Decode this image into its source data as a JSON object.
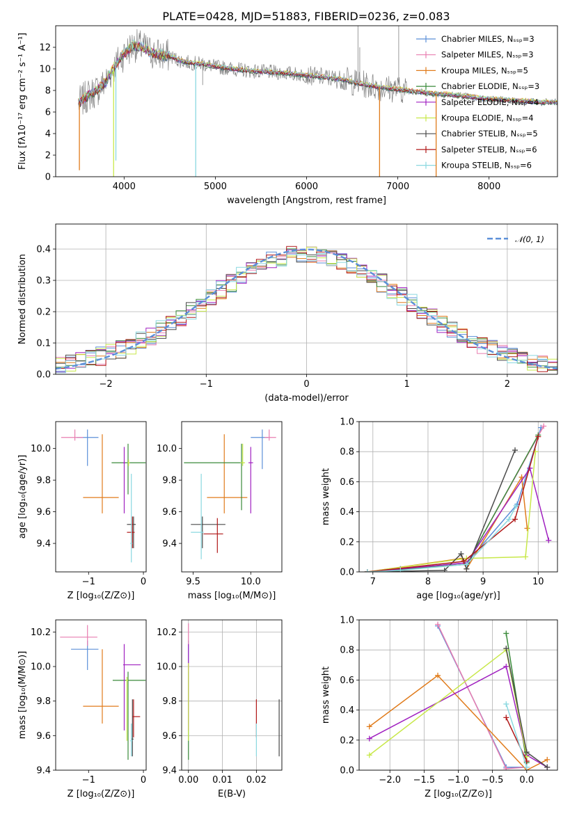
{
  "title": "PLATE=0428, MJD=51883, FIBERID=0236, z=0.083",
  "series_colors": {
    "Chabrier MILES": "#5b8fd8",
    "Salpeter MILES": "#e87db0",
    "Kroupa MILES": "#e07b1b",
    "Chabrier ELODIE": "#3a8a3a",
    "Salpeter ELODIE": "#a020c0",
    "Kroupa ELODIE": "#c8e84a",
    "Chabrier STELIB": "#4a4a4a",
    "Salpeter STELIB": "#b01818",
    "Kroupa STELIB": "#8ad8e0",
    "observed": "#808080",
    "normal": "#5b8fd8"
  },
  "chart_data": [
    {
      "id": "spectrum",
      "type": "line",
      "xlabel": "wavelength [Angstrom, rest frame]",
      "ylabel": "Flux [fλ10⁻¹⁷ erg cm⁻² s⁻¹ A⁻¹]",
      "xlim": [
        3250,
        8750
      ],
      "ylim": [
        0,
        14
      ],
      "xticks": [
        4000,
        5000,
        6000,
        7000,
        8000
      ],
      "yticks": [
        0,
        2,
        4,
        6,
        8,
        10,
        12
      ],
      "grid": false,
      "legend": "top-right",
      "legend_entries": [
        "Chabrier MILES, Nₛₛₚ=3",
        "Salpeter MILES, Nₛₛₚ=3",
        "Kroupa MILES, Nₛₛₚ=5",
        "Chabrier ELODIE, Nₛₛₚ=3",
        "Salpeter ELODIE, Nₛₛₚ=4",
        "Kroupa ELODIE, Nₛₛₚ=4",
        "Chabrier STELIB, Nₛₛₚ=5",
        "Salpeter STELIB, Nₛₛₚ=6",
        "Kroupa STELIB, Nₛₛₚ=6"
      ],
      "continuum": {
        "x": [
          3500,
          3600,
          3700,
          3800,
          3900,
          4000,
          4100,
          4200,
          4300,
          4400,
          4500,
          4600,
          4700,
          4800,
          4900,
          5000,
          5200,
          5400,
          5600,
          5800,
          6000,
          6200,
          6400,
          6600,
          6800,
          7000,
          7200,
          7400,
          7600,
          7800,
          8000,
          8200,
          8400,
          8600,
          8750
        ],
        "y": [
          6.8,
          7.5,
          8.0,
          8.8,
          10.3,
          11.4,
          12.2,
          12.0,
          11.5,
          11.3,
          11.2,
          10.8,
          10.6,
          10.5,
          10.4,
          10.2,
          10.0,
          9.8,
          9.7,
          9.6,
          9.4,
          9.2,
          9.0,
          8.6,
          8.3,
          8.1,
          7.9,
          7.7,
          7.6,
          7.4,
          7.2,
          7.1,
          7.0,
          6.9,
          6.9
        ]
      },
      "drops": [
        {
          "x": 3510,
          "y": 0.6,
          "series": "Kroupa MILES"
        },
        {
          "x": 3885,
          "y": 0,
          "series": "Kroupa ELODIE"
        },
        {
          "x": 3910,
          "y": 1.5,
          "series": "Kroupa STELIB"
        },
        {
          "x": 4785,
          "y": 0,
          "series": "Kroupa STELIB"
        },
        {
          "x": 6800,
          "y": 0,
          "series": "Kroupa MILES"
        },
        {
          "x": 7420,
          "y": 0,
          "series": "Kroupa MILES"
        }
      ]
    },
    {
      "id": "residuals",
      "type": "bar",
      "xlabel": "(data-model)/error",
      "ylabel": "Normed distribution",
      "xlim": [
        -2.5,
        2.5
      ],
      "ylim": [
        0,
        0.48
      ],
      "xticks": [
        -2,
        -1,
        0,
        1,
        2
      ],
      "yticks": [
        0.0,
        0.1,
        0.2,
        0.3,
        0.4
      ],
      "grid": true,
      "legend": "top-right",
      "legend_entries": [
        "𝒩(0, 1)"
      ],
      "bin_width": 0.1,
      "bin_start": -2.5
    },
    {
      "id": "age-vs-Z",
      "type": "scatter",
      "xlabel": "Z [log₁₀(Z/Z⊙)]",
      "ylabel": "age  [log₁₀(age/yr)]",
      "xlim": [
        -1.6,
        0.05
      ],
      "ylim": [
        9.22,
        10.17
      ],
      "xticks": [
        -1,
        0
      ],
      "yticks": [
        9.4,
        9.6,
        9.8,
        10.0
      ],
      "grid": false,
      "points": [
        {
          "series": "Chabrier MILES",
          "x": -1.02,
          "y": 10.07,
          "xerr": [
            0.2,
            0.2
          ],
          "yerr": [
            0.18,
            0.05
          ]
        },
        {
          "series": "Salpeter MILES",
          "x": -1.25,
          "y": 10.07,
          "xerr": [
            0.25,
            0.15
          ],
          "yerr": [
            0.02,
            0.05
          ]
        },
        {
          "series": "Kroupa MILES",
          "x": -0.75,
          "y": 9.69,
          "xerr": [
            0.35,
            0.3
          ],
          "yerr": [
            0.1,
            0.4
          ]
        },
        {
          "series": "Chabrier ELODIE",
          "x": -0.28,
          "y": 9.91,
          "xerr": [
            0.3,
            0.32
          ],
          "yerr": [
            0.2,
            0.12
          ]
        },
        {
          "series": "Salpeter ELODIE",
          "x": -0.35,
          "y": 9.91,
          "xerr": [
            0.02,
            0.02
          ],
          "yerr": [
            0.32,
            0.1
          ]
        },
        {
          "series": "Kroupa ELODIE",
          "x": -0.27,
          "y": 9.91,
          "xerr": [
            0.02,
            0.02
          ],
          "yerr": [
            0.02,
            0.02
          ]
        },
        {
          "series": "Chabrier STELIB",
          "x": -0.18,
          "y": 9.52,
          "xerr": [
            0.12,
            0.04
          ],
          "yerr": [
            0.15,
            0.05
          ]
        },
        {
          "series": "Salpeter STELIB",
          "x": -0.2,
          "y": 9.47,
          "xerr": [
            0.1,
            0.04
          ],
          "yerr": [
            0.1,
            0.1
          ]
        },
        {
          "series": "Kroupa STELIB",
          "x": -0.22,
          "y": 9.4,
          "xerr": [
            0.02,
            0.02
          ],
          "yerr": [
            0.12,
            0.44
          ]
        }
      ]
    },
    {
      "id": "age-vs-mass",
      "type": "scatter",
      "xlabel": "mass [log₁₀(M/M⊙)]",
      "ylabel": "",
      "xlim": [
        9.4,
        10.27
      ],
      "ylim": [
        9.22,
        10.17
      ],
      "xticks": [
        9.5,
        10.0
      ],
      "yticks": [
        9.4,
        9.6,
        9.8,
        10.0
      ],
      "grid": false,
      "points": [
        {
          "series": "Chabrier MILES",
          "x": 10.1,
          "y": 10.07,
          "xerr": [
            0.1,
            0.05
          ],
          "yerr": [
            0.2,
            0.05
          ]
        },
        {
          "series": "Salpeter MILES",
          "x": 10.16,
          "y": 10.07,
          "xerr": [
            0.04,
            0.06
          ],
          "yerr": [
            0.02,
            0.05
          ]
        },
        {
          "series": "Kroupa MILES",
          "x": 9.77,
          "y": 9.69,
          "xerr": [
            0.15,
            0.2
          ],
          "yerr": [
            0.1,
            0.4
          ]
        },
        {
          "series": "Chabrier ELODIE",
          "x": 9.92,
          "y": 9.91,
          "xerr": [
            0.5,
            0.02
          ],
          "yerr": [
            0.3,
            0.12
          ]
        },
        {
          "series": "Salpeter ELODIE",
          "x": 10.0,
          "y": 9.91,
          "xerr": [
            0.02,
            0.02
          ],
          "yerr": [
            0.32,
            0.1
          ]
        },
        {
          "series": "Kroupa ELODIE",
          "x": 9.93,
          "y": 9.91,
          "xerr": [
            0.02,
            0.02
          ],
          "yerr": [
            0.02,
            0.12
          ]
        },
        {
          "series": "Chabrier STELIB",
          "x": 9.58,
          "y": 9.52,
          "xerr": [
            0.1,
            0.2
          ],
          "yerr": [
            0.15,
            0.05
          ]
        },
        {
          "series": "Salpeter STELIB",
          "x": 9.71,
          "y": 9.46,
          "xerr": [
            0.12,
            0.05
          ],
          "yerr": [
            0.12,
            0.1
          ]
        },
        {
          "series": "Kroupa STELIB",
          "x": 9.57,
          "y": 9.47,
          "xerr": [
            0.09,
            0.02
          ],
          "yerr": [
            0.17,
            0.37
          ]
        }
      ]
    },
    {
      "id": "weight-vs-age",
      "type": "line",
      "xlabel": "age  [log₁₀(age/yr)]",
      "ylabel": "mass weight",
      "xlim": [
        6.75,
        10.35
      ],
      "ylim": [
        0,
        1.0
      ],
      "xticks": [
        7,
        8,
        9,
        10
      ],
      "yticks": [
        0.0,
        0.2,
        0.4,
        0.6,
        0.8,
        1.0
      ],
      "grid": true,
      "series": [
        {
          "name": "Chabrier MILES",
          "x": [
            6.9,
            7.5,
            8.7,
            9.62,
            10.05
          ],
          "y": [
            0.0,
            0.02,
            0.06,
            0.45,
            0.96
          ]
        },
        {
          "name": "Salpeter MILES",
          "x": [
            6.9,
            8.7,
            10.1
          ],
          "y": [
            0.0,
            0.05,
            0.97
          ]
        },
        {
          "name": "Kroupa MILES",
          "x": [
            6.9,
            8.62,
            8.7,
            9.7,
            9.8
          ],
          "y": [
            0.0,
            0.09,
            0.02,
            0.63,
            0.29
          ]
        },
        {
          "name": "Chabrier ELODIE",
          "x": [
            6.9,
            8.7,
            10.0
          ],
          "y": [
            0.0,
            0.05,
            0.91
          ]
        },
        {
          "name": "Salpeter ELODIE",
          "x": [
            6.9,
            8.7,
            9.85,
            10.19
          ],
          "y": [
            0.0,
            0.06,
            0.69,
            0.21
          ]
        },
        {
          "name": "Kroupa ELODIE",
          "x": [
            6.9,
            8.7,
            9.77,
            9.95
          ],
          "y": [
            0.0,
            0.09,
            0.1,
            0.8
          ]
        },
        {
          "name": "Chabrier STELIB",
          "x": [
            6.9,
            8.3,
            8.6,
            8.7,
            9.58
          ],
          "y": [
            0.0,
            0.01,
            0.12,
            0.02,
            0.81
          ]
        },
        {
          "name": "Salpeter STELIB",
          "x": [
            6.9,
            8.65,
            9.58,
            10.0
          ],
          "y": [
            0.0,
            0.07,
            0.35,
            0.9
          ]
        },
        {
          "name": "Kroupa STELIB",
          "x": [
            6.9,
            7.5,
            8.7,
            9.47,
            9.6
          ],
          "y": [
            0.0,
            0.01,
            0.05,
            0.35,
            0.44
          ]
        }
      ]
    },
    {
      "id": "mass-vs-Z",
      "type": "scatter",
      "xlabel": "Z [log₁₀(Z/Z⊙)]",
      "ylabel": "mass [log₁₀(M/M⊙)]",
      "xlim": [
        -1.6,
        0.05
      ],
      "ylim": [
        9.4,
        10.27
      ],
      "xticks": [
        -1,
        0
      ],
      "yticks": [
        9.4,
        9.6,
        9.8,
        10.0,
        10.2
      ],
      "grid": false,
      "points": [
        {
          "series": "Chabrier MILES",
          "x": -1.02,
          "y": 10.1,
          "xerr": [
            0.3,
            0.2
          ],
          "yerr": [
            0.12,
            0.05
          ]
        },
        {
          "series": "Salpeter MILES",
          "x": -1.02,
          "y": 10.17,
          "xerr": [
            0.5,
            0.18
          ],
          "yerr": [
            0.05,
            0.07
          ]
        },
        {
          "series": "Kroupa MILES",
          "x": -0.75,
          "y": 9.77,
          "xerr": [
            0.35,
            0.3
          ],
          "yerr": [
            0.1,
            0.33
          ]
        },
        {
          "series": "Chabrier ELODIE",
          "x": -0.28,
          "y": 9.92,
          "xerr": [
            0.28,
            0.32
          ],
          "yerr": [
            0.46,
            0.05
          ]
        },
        {
          "series": "Salpeter ELODIE",
          "x": -0.35,
          "y": 10.01,
          "xerr": [
            0.02,
            0.3
          ],
          "yerr": [
            0.38,
            0.12
          ]
        },
        {
          "series": "Kroupa ELODIE",
          "x": -0.3,
          "y": 9.92,
          "xerr": [
            0.02,
            0.02
          ],
          "yerr": [
            0.35,
            0.02
          ]
        },
        {
          "series": "Chabrier STELIB",
          "x": -0.2,
          "y": 9.58,
          "xerr": [
            0.02,
            0.02
          ],
          "yerr": [
            0.1,
            0.23
          ]
        },
        {
          "series": "Salpeter STELIB",
          "x": -0.18,
          "y": 9.71,
          "xerr": [
            0.02,
            0.12
          ],
          "yerr": [
            0.12,
            0.1
          ]
        },
        {
          "series": "Kroupa STELIB",
          "x": -0.22,
          "y": 9.57,
          "xerr": [
            0.02,
            0.02
          ],
          "yerr": [
            0.09,
            0.1
          ]
        }
      ]
    },
    {
      "id": "mass-vs-ebv",
      "type": "scatter",
      "xlabel": "E(B-V)",
      "ylabel": "",
      "xlim": [
        -0.002,
        0.0275
      ],
      "ylim": [
        9.4,
        10.27
      ],
      "xticks": [
        0.0,
        0.01,
        0.02
      ],
      "yticks": [
        9.4,
        9.6,
        9.8,
        10.0,
        10.2
      ],
      "grid": true,
      "points": [
        {
          "series": "Chabrier MILES",
          "x": 0.0,
          "y": 10.1,
          "xerr": [
            0,
            0
          ],
          "yerr": [
            0.1,
            0.05
          ]
        },
        {
          "series": "Salpeter MILES",
          "x": 0.0,
          "y": 10.17,
          "xerr": [
            0,
            0
          ],
          "yerr": [
            0.05,
            0.08
          ]
        },
        {
          "series": "Kroupa MILES",
          "x": 0.0,
          "y": 9.77,
          "xerr": [
            0,
            0
          ],
          "yerr": [
            0.1,
            0.25
          ]
        },
        {
          "series": "Chabrier ELODIE",
          "x": 0.0,
          "y": 9.92,
          "xerr": [
            0,
            0
          ],
          "yerr": [
            0.46,
            0.05
          ]
        },
        {
          "series": "Salpeter ELODIE",
          "x": 0.0,
          "y": 10.01,
          "xerr": [
            0,
            0
          ],
          "yerr": [
            0.38,
            0.12
          ]
        },
        {
          "series": "Kroupa ELODIE",
          "x": 0.0,
          "y": 9.92,
          "xerr": [
            0,
            0
          ],
          "yerr": [
            0.35,
            0.1
          ]
        },
        {
          "series": "Chabrier STELIB",
          "x": 0.0267,
          "y": 9.58,
          "xerr": [
            0,
            0
          ],
          "yerr": [
            0.1,
            0.23
          ]
        },
        {
          "series": "Salpeter STELIB",
          "x": 0.02,
          "y": 9.71,
          "xerr": [
            0,
            0
          ],
          "yerr": [
            0.12,
            0.1
          ]
        },
        {
          "series": "Kroupa STELIB",
          "x": 0.02,
          "y": 9.57,
          "xerr": [
            0,
            0
          ],
          "yerr": [
            0.09,
            0.1
          ]
        }
      ]
    },
    {
      "id": "weight-vs-Z",
      "type": "line",
      "xlabel": "Z [log₁₀(Z/Z⊙)]",
      "ylabel": "mass weight",
      "xlim": [
        -2.45,
        0.45
      ],
      "ylim": [
        0,
        1.0
      ],
      "xticks": [
        -2.0,
        -1.5,
        -1.0,
        -0.5,
        0.0
      ],
      "yticks": [
        0.0,
        0.2,
        0.4,
        0.6,
        0.8,
        1.0
      ],
      "grid": true,
      "series": [
        {
          "name": "Chabrier MILES",
          "x": [
            -1.3,
            -0.3,
            0.0
          ],
          "y": [
            0.96,
            0.02,
            0.02
          ]
        },
        {
          "name": "Salpeter MILES",
          "x": [
            -1.3,
            -0.3,
            0.0
          ],
          "y": [
            0.97,
            0.01,
            0.02
          ]
        },
        {
          "name": "Kroupa MILES",
          "x": [
            -2.3,
            -1.3,
            0.0,
            0.3
          ],
          "y": [
            0.29,
            0.63,
            0.0,
            0.07
          ]
        },
        {
          "name": "Chabrier ELODIE",
          "x": [
            -0.3,
            0.0
          ],
          "y": [
            0.91,
            0.05
          ]
        },
        {
          "name": "Salpeter ELODIE",
          "x": [
            -2.3,
            -0.3,
            0.0,
            0.3
          ],
          "y": [
            0.21,
            0.69,
            0.1,
            0.02
          ]
        },
        {
          "name": "Kroupa ELODIE",
          "x": [
            -2.3,
            -0.3,
            0.0
          ],
          "y": [
            0.1,
            0.8,
            0.09
          ]
        },
        {
          "name": "Chabrier STELIB",
          "x": [
            -0.3,
            0.0,
            0.3
          ],
          "y": [
            0.81,
            0.12,
            0.02
          ]
        },
        {
          "name": "Salpeter STELIB",
          "x": [
            -0.3,
            0.0
          ],
          "y": [
            0.35,
            0.06
          ]
        },
        {
          "name": "Kroupa STELIB",
          "x": [
            -0.3,
            0.0
          ],
          "y": [
            0.44,
            0.02
          ]
        }
      ]
    }
  ]
}
